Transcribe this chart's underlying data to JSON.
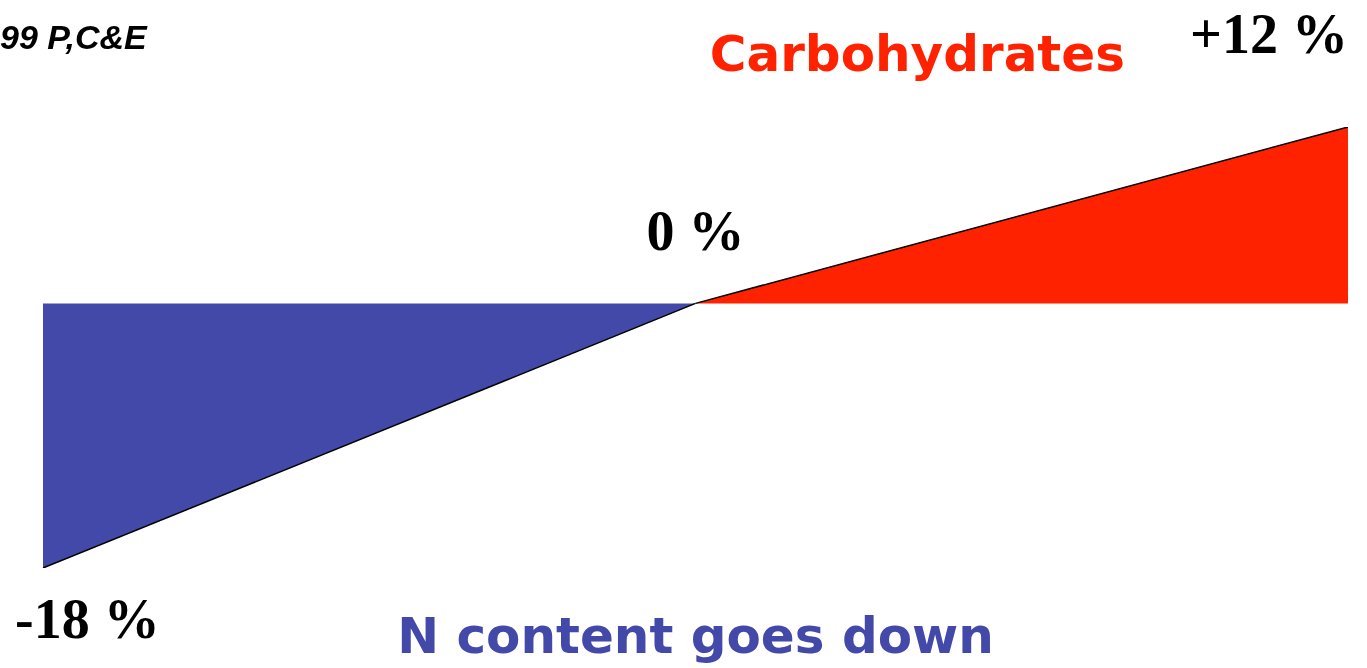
{
  "chart_data": {
    "type": "area",
    "categories": [
      null,
      null,
      null
    ],
    "series": [
      {
        "name": "N content goes down",
        "color": "#4349a8",
        "values": [
          -18,
          0,
          null
        ],
        "value_labels": [
          "-18 %",
          "0 %",
          null
        ]
      },
      {
        "name": "Carbohydrates",
        "color": "#ff2200",
        "values": [
          null,
          0,
          12
        ],
        "value_labels": [
          null,
          null,
          "+12 %"
        ]
      }
    ],
    "annotations": [
      "99 P,C&E"
    ]
  }
}
